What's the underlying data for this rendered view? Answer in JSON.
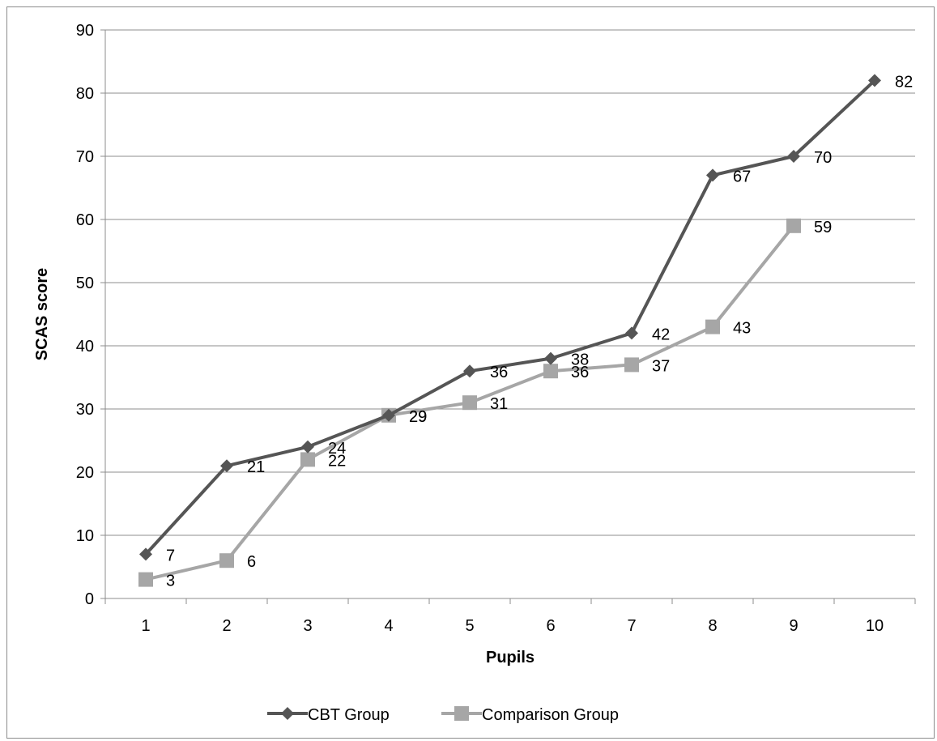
{
  "chart_data": {
    "type": "line",
    "title": "",
    "xlabel": "Pupils",
    "ylabel": "SCAS score",
    "ylim": [
      0,
      90
    ],
    "yticks": [
      0,
      10,
      20,
      30,
      40,
      50,
      60,
      70,
      80,
      90
    ],
    "categories": [
      "1",
      "2",
      "3",
      "4",
      "5",
      "6",
      "7",
      "8",
      "9",
      "10"
    ],
    "grid": "horizontal",
    "legend_position": "bottom",
    "series": [
      {
        "name": "CBT Group",
        "color": "#555555",
        "marker": "diamond",
        "values": [
          7,
          21,
          24,
          29,
          36,
          38,
          42,
          67,
          70,
          82
        ]
      },
      {
        "name": "Comparison Group",
        "color": "#a6a6a6",
        "marker": "square",
        "values": [
          3,
          6,
          22,
          29,
          31,
          36,
          37,
          43,
          59,
          null
        ]
      }
    ]
  }
}
